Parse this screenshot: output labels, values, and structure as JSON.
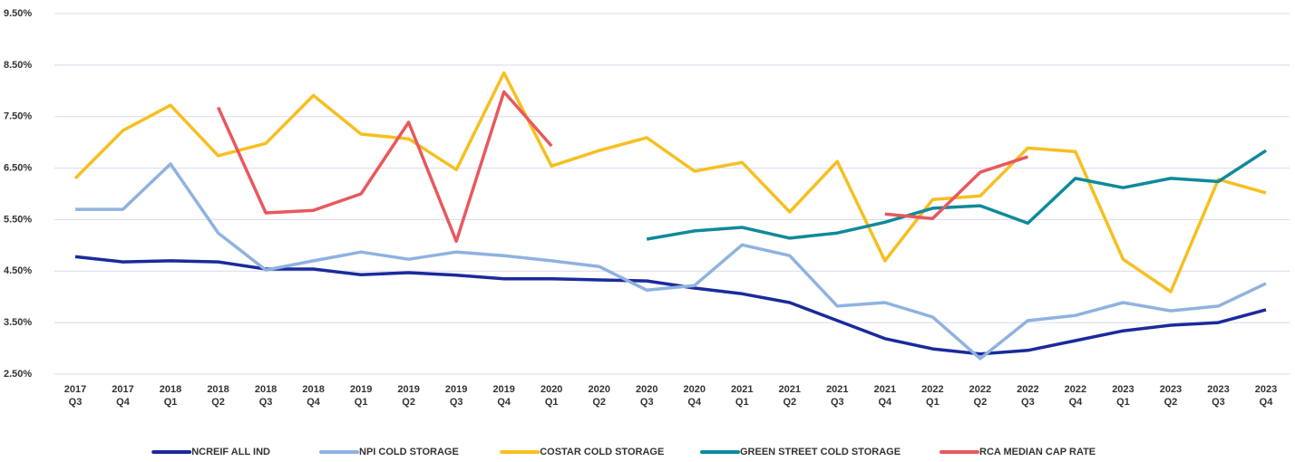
{
  "chart_data": {
    "type": "line",
    "categories": [
      [
        "2017",
        "Q3"
      ],
      [
        "2017",
        "Q4"
      ],
      [
        "2018",
        "Q1"
      ],
      [
        "2018",
        "Q2"
      ],
      [
        "2018",
        "Q3"
      ],
      [
        "2018",
        "Q4"
      ],
      [
        "2019",
        "Q1"
      ],
      [
        "2019",
        "Q2"
      ],
      [
        "2019",
        "Q3"
      ],
      [
        "2019",
        "Q4"
      ],
      [
        "2020",
        "Q1"
      ],
      [
        "2020",
        "Q2"
      ],
      [
        "2020",
        "Q3"
      ],
      [
        "2020",
        "Q4"
      ],
      [
        "2021",
        "Q1"
      ],
      [
        "2021",
        "Q2"
      ],
      [
        "2021",
        "Q3"
      ],
      [
        "2021",
        "Q4"
      ],
      [
        "2022",
        "Q1"
      ],
      [
        "2022",
        "Q2"
      ],
      [
        "2022",
        "Q3"
      ],
      [
        "2022",
        "Q4"
      ],
      [
        "2023",
        "Q1"
      ],
      [
        "2023",
        "Q2"
      ],
      [
        "2023",
        "Q3"
      ],
      [
        "2023",
        "Q4"
      ]
    ],
    "series": [
      {
        "name": "NCREIF ALL IND",
        "color": "#1a2a9c",
        "values": [
          4.78,
          4.68,
          4.7,
          4.68,
          4.54,
          4.54,
          4.43,
          4.47,
          4.42,
          4.35,
          4.35,
          4.33,
          4.31,
          4.17,
          4.06,
          3.89,
          3.54,
          3.19,
          2.99,
          2.89,
          2.96,
          3.15,
          3.34,
          3.45,
          3.5,
          3.75
        ]
      },
      {
        "name": "NPI COLD STORAGE",
        "color": "#8fb2e0",
        "values": [
          5.7,
          5.7,
          6.58,
          5.24,
          4.52,
          4.7,
          4.87,
          4.73,
          4.87,
          4.8,
          4.7,
          4.59,
          4.13,
          4.22,
          5.01,
          4.8,
          3.82,
          3.89,
          3.61,
          2.8,
          3.54,
          3.64,
          3.89,
          3.73,
          3.82,
          4.26
        ]
      },
      {
        "name": "COSTAR COLD STORAGE",
        "color": "#f7bf1f",
        "values": [
          6.3,
          7.23,
          7.72,
          6.74,
          6.98,
          7.91,
          7.16,
          7.07,
          6.47,
          8.35,
          6.54,
          6.84,
          7.09,
          6.44,
          6.61,
          5.65,
          6.63,
          4.7,
          5.89,
          5.96,
          6.89,
          6.82,
          4.73,
          4.1,
          6.28,
          6.02
        ]
      },
      {
        "name": "GREEN STREET COLD STORAGE",
        "color": "#0e8a9a",
        "values": [
          null,
          null,
          null,
          null,
          null,
          null,
          null,
          null,
          null,
          null,
          null,
          null,
          5.12,
          5.28,
          5.35,
          5.14,
          5.24,
          5.45,
          5.72,
          5.77,
          5.43,
          6.3,
          6.12,
          6.3,
          6.24,
          6.84
        ]
      },
      {
        "name": "RCA MEDIAN CAP RATE",
        "color": "#e8585e",
        "values": [
          null,
          null,
          null,
          7.68,
          5.63,
          5.68,
          6.0,
          7.39,
          5.08,
          7.98,
          6.93,
          null,
          null,
          null,
          null,
          null,
          null,
          5.61,
          5.52,
          6.42,
          6.72,
          null,
          null,
          null,
          null,
          null
        ]
      }
    ],
    "ylim": [
      2.5,
      9.5
    ],
    "yticks": [
      {
        "value": 2.5,
        "label": "2.50%"
      },
      {
        "value": 3.5,
        "label": "3.50%"
      },
      {
        "value": 4.5,
        "label": "4.50%"
      },
      {
        "value": 5.5,
        "label": "5.50%"
      },
      {
        "value": 6.5,
        "label": "6.50%"
      },
      {
        "value": 7.5,
        "label": "7.50%"
      },
      {
        "value": 8.5,
        "label": "8.50%"
      },
      {
        "value": 9.5,
        "label": "9.50%"
      }
    ],
    "grid": true,
    "legend": "bottom"
  }
}
